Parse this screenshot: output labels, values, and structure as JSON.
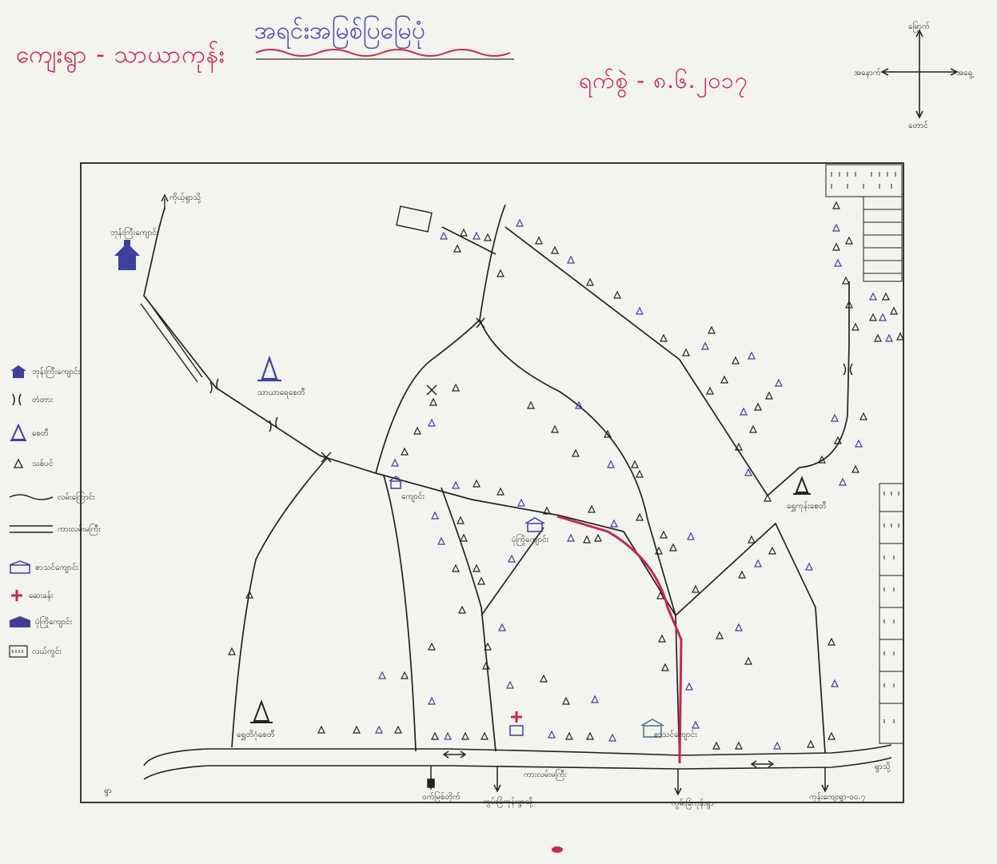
{
  "title": {
    "village_tract": "ကျေးရွာ - သာယာကုန်း",
    "map_name": "အရင်းအမြစ်ပြမြေပုံ",
    "date": "ရက်စွဲ - ၈.၆.၂၀၁၇"
  },
  "compass": {
    "north": "မြောက်",
    "south": "တောင်",
    "east": "အရှေ့",
    "west": "အနောက်"
  },
  "legend": [
    {
      "icon": "monastery-icon",
      "label": "ဘုန်းကြီးကျောင်း"
    },
    {
      "icon": "bridge-icon",
      "label": "တံတား"
    },
    {
      "icon": "pagoda-icon",
      "label": "စေတီ"
    },
    {
      "icon": "tree-icon",
      "label": "သစ်ပင်"
    },
    {
      "icon": "road-icon",
      "label": "လမ်းကြောင်း"
    },
    {
      "icon": "main-road-icon",
      "label": "ကားလမ်းမကြီး"
    },
    {
      "icon": "school-icon",
      "label": "စာသင်ကျောင်း"
    },
    {
      "icon": "clinic-icon",
      "label": "ဆေးခန်း"
    },
    {
      "icon": "hall-icon",
      "label": "ပုံကြိုကျောင်း"
    },
    {
      "icon": "field-icon",
      "label": "လယ်ကွင်း"
    }
  ],
  "places": {
    "monastery_top": "ဘုန်းကြီးကျောင်း",
    "to_village_top": "ကိုယ့်ရွာသို့",
    "pagoda_center": "သာယာရေစေတီ",
    "pagoda_right": "ရွှေကုန်းစေတီ",
    "pagoda_bottom": "ရွှေတိဂုံစေတီ",
    "school_small": "ကျောင်း",
    "hall": "ပုံကြိုကျောင်း",
    "clinic_school": "စာသင်ကျောင်း",
    "main_road": "ကားလမ်းမကြီး",
    "bottom_left": "ရွာ",
    "bottom_right_corner": "ရွာသို့",
    "exit_1": "ဝက်မြစ်တိုက်",
    "exit_2": "ကွမ်းခြံကုန်းရွာသို့",
    "exit_3": "ကွမ်းခြံကုန်းရွာ",
    "exit_4": "ကုန်းကျေးရွာ-၀၀.၇"
  },
  "colors": {
    "ink": "#1e1e1e",
    "blue": "#3f3f9c",
    "red": "#c8284b",
    "paper": "#f3f3ef"
  }
}
